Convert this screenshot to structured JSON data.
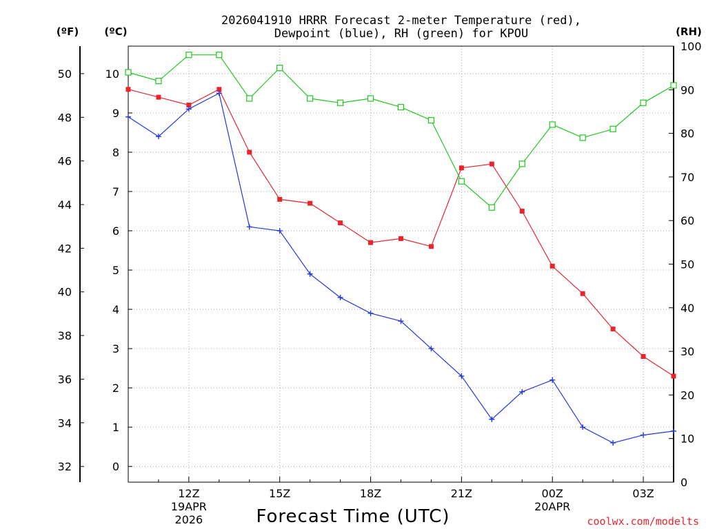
{
  "chart_data": {
    "type": "line",
    "title_line1": "2026041910 HRRR Forecast 2-meter Temperature (red),",
    "title_line2": "Dewpoint (blue), RH (green) for KPOU",
    "xlabel": "Forecast Time (UTC)",
    "credit": "coolwx.com/modelts",
    "left_axis_f": {
      "unit_label": "(ºF)",
      "ticks": [
        "32",
        "34",
        "36",
        "38",
        "40",
        "42",
        "44",
        "46",
        "48",
        "50"
      ]
    },
    "left_axis_c": {
      "unit_label": "(ºC)",
      "ticks": [
        "0",
        "1",
        "2",
        "3",
        "4",
        "5",
        "6",
        "7",
        "8",
        "9",
        "10"
      ],
      "ylim": [
        -0.4,
        10.7
      ]
    },
    "right_axis_rh": {
      "unit_label": "(RH)",
      "ticks": [
        "0",
        "10",
        "20",
        "30",
        "40",
        "50",
        "60",
        "70",
        "80",
        "90",
        "100"
      ],
      "ylim": [
        0,
        100
      ]
    },
    "x": {
      "hours": [
        10,
        11,
        12,
        13,
        14,
        15,
        16,
        17,
        18,
        19,
        20,
        21,
        22,
        23,
        24,
        25,
        26,
        27,
        28
      ],
      "xlim": [
        10,
        28
      ]
    },
    "x_ticks": [
      {
        "hour": 12,
        "label": "12Z",
        "sub1": "19APR",
        "sub2": "2026"
      },
      {
        "hour": 15,
        "label": "15Z"
      },
      {
        "hour": 18,
        "label": "18Z"
      },
      {
        "hour": 21,
        "label": "21Z"
      },
      {
        "hour": 24,
        "label": "00Z",
        "sub1": "20APR"
      },
      {
        "hour": 27,
        "label": "03Z"
      }
    ],
    "series": [
      {
        "name": "Temperature",
        "unit": "C",
        "color": "#e8252d",
        "marker": "filled-square",
        "values": [
          9.6,
          9.4,
          9.2,
          9.6,
          8.0,
          6.8,
          6.7,
          6.2,
          5.7,
          5.8,
          5.6,
          7.6,
          7.7,
          6.5,
          5.1,
          4.4,
          3.5,
          2.8,
          2.3
        ]
      },
      {
        "name": "Dewpoint",
        "unit": "C",
        "color": "#2136e0",
        "marker": "plus",
        "values": [
          8.9,
          8.4,
          9.1,
          9.5,
          6.1,
          6.0,
          4.9,
          4.3,
          3.9,
          3.7,
          3.0,
          2.3,
          1.2,
          1.9,
          2.2,
          1.0,
          0.6,
          0.8,
          0.9
        ]
      },
      {
        "name": "RH",
        "unit": "%",
        "color": "#1ec81e",
        "marker": "open-square",
        "values": [
          94,
          92,
          98,
          98,
          88,
          95,
          88,
          87,
          88,
          86,
          83,
          69,
          63,
          73,
          82,
          79,
          81,
          87,
          91
        ]
      }
    ]
  }
}
